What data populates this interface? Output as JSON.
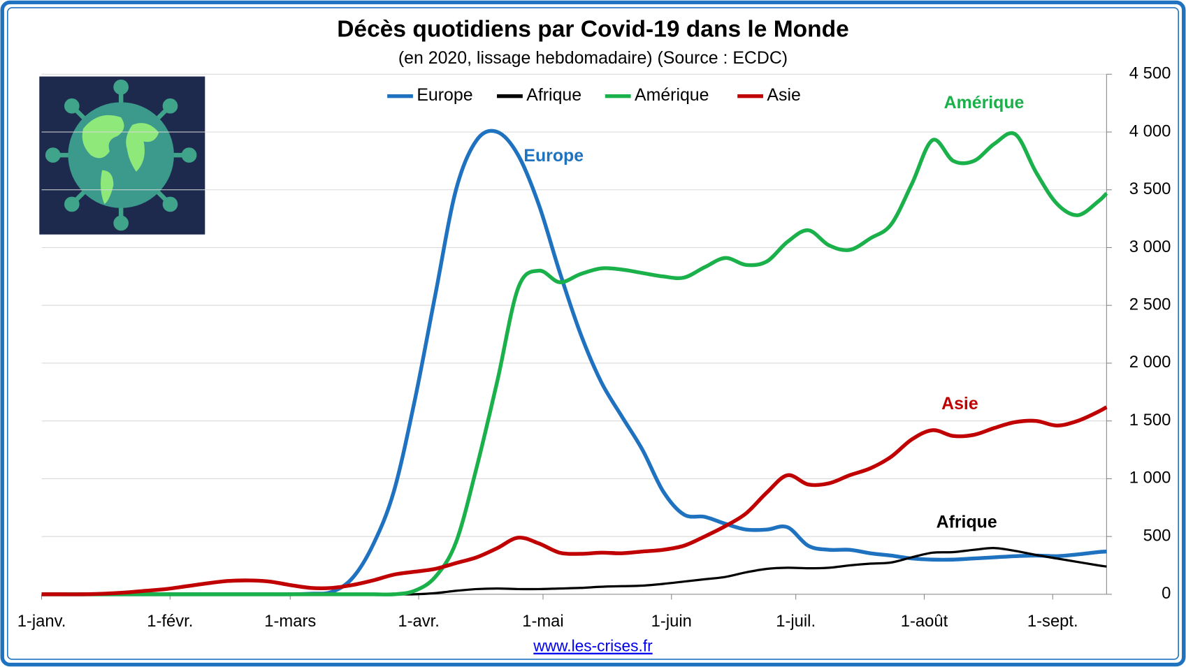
{
  "chart_data": {
    "type": "line",
    "title": "Décès quotidiens par Covid-19 dans le Monde",
    "subtitle": "(en 2020, lissage hebdomadaire) (Source : ECDC)",
    "source_link": "www.les-crises.fr",
    "x": [
      0,
      5,
      10,
      15,
      20,
      25,
      30,
      35,
      40,
      45,
      50,
      55,
      60,
      65,
      70,
      75,
      80,
      85,
      90,
      95,
      100,
      105,
      110,
      115,
      120,
      125,
      130,
      135,
      140,
      145,
      150,
      155,
      160,
      165,
      170,
      175,
      180,
      185,
      190,
      195,
      200,
      205,
      210,
      215,
      220,
      225,
      230,
      235,
      240,
      245,
      250,
      255,
      257
    ],
    "xlim": [
      0,
      257
    ],
    "xticks": [
      {
        "value": 0,
        "label": "1-janv."
      },
      {
        "value": 31,
        "label": "1-févr."
      },
      {
        "value": 60,
        "label": "1-mars"
      },
      {
        "value": 91,
        "label": "1-avr."
      },
      {
        "value": 121,
        "label": "1-mai"
      },
      {
        "value": 152,
        "label": "1-juin"
      },
      {
        "value": 182,
        "label": "1-juil."
      },
      {
        "value": 213,
        "label": "1-août"
      },
      {
        "value": 244,
        "label": "1-sept."
      }
    ],
    "ylim": [
      0,
      4500
    ],
    "yticks": [
      0,
      500,
      {
        "value": 1000,
        "label": "1 000"
      },
      {
        "value": 1500,
        "label": "1 500"
      },
      {
        "value": 2000,
        "label": "2 000"
      },
      {
        "value": 2500,
        "label": "2 500"
      },
      {
        "value": 3000,
        "label": "3 000"
      },
      {
        "value": 3500,
        "label": "3 500"
      },
      {
        "value": 4000,
        "label": "4 000"
      },
      {
        "value": 4500,
        "label": "4 500"
      }
    ],
    "y_axis_side": "right",
    "grid": true,
    "legend": "top",
    "series": [
      {
        "name": "Europe",
        "color": "#1f72bf",
        "values": [
          0,
          0,
          0,
          0,
          0,
          0,
          0,
          0,
          0,
          0,
          0,
          0,
          0,
          5,
          20,
          140,
          430,
          890,
          1670,
          2590,
          3500,
          3930,
          4000,
          3800,
          3370,
          2790,
          2260,
          1840,
          1540,
          1250,
          890,
          690,
          670,
          610,
          560,
          560,
          580,
          420,
          385,
          385,
          355,
          335,
          310,
          300,
          300,
          310,
          320,
          330,
          335,
          330,
          345,
          365,
          370
        ]
      },
      {
        "name": "Afrique",
        "color": "#000000",
        "values": [
          0,
          0,
          0,
          0,
          0,
          0,
          0,
          0,
          0,
          0,
          0,
          0,
          0,
          0,
          0,
          0,
          0,
          0,
          0,
          10,
          30,
          45,
          50,
          45,
          45,
          50,
          55,
          65,
          70,
          75,
          90,
          110,
          130,
          150,
          190,
          220,
          230,
          225,
          230,
          250,
          265,
          275,
          320,
          360,
          365,
          385,
          400,
          375,
          340,
          310,
          280,
          250,
          240
        ]
      },
      {
        "name": "Amérique",
        "color": "#1ab04a",
        "values": [
          0,
          0,
          0,
          0,
          0,
          0,
          0,
          0,
          0,
          0,
          0,
          0,
          0,
          0,
          0,
          0,
          0,
          0,
          30,
          150,
          450,
          1100,
          1850,
          2650,
          2800,
          2700,
          2770,
          2820,
          2810,
          2780,
          2750,
          2740,
          2830,
          2910,
          2850,
          2880,
          3050,
          3150,
          3020,
          2980,
          3080,
          3200,
          3550,
          3930,
          3750,
          3750,
          3900,
          3980,
          3650,
          3380,
          3280,
          3400,
          3470
        ]
      },
      {
        "name": "Asie",
        "color": "#c00000",
        "values": [
          0,
          0,
          0,
          5,
          15,
          30,
          45,
          70,
          95,
          115,
          120,
          110,
          80,
          55,
          55,
          80,
          120,
          170,
          195,
          220,
          270,
          320,
          400,
          490,
          440,
          360,
          350,
          360,
          355,
          370,
          385,
          420,
          500,
          590,
          700,
          880,
          1030,
          950,
          960,
          1030,
          1090,
          1190,
          1340,
          1420,
          1370,
          1380,
          1440,
          1490,
          1500,
          1460,
          1500,
          1580,
          1620
        ]
      }
    ],
    "annotations": [
      {
        "text": "Europe",
        "color": "#1f72bf"
      },
      {
        "text": "Amérique",
        "color": "#1ab04a"
      },
      {
        "text": "Asie",
        "color": "#c00000"
      },
      {
        "text": "Afrique",
        "color": "#000000"
      }
    ]
  }
}
